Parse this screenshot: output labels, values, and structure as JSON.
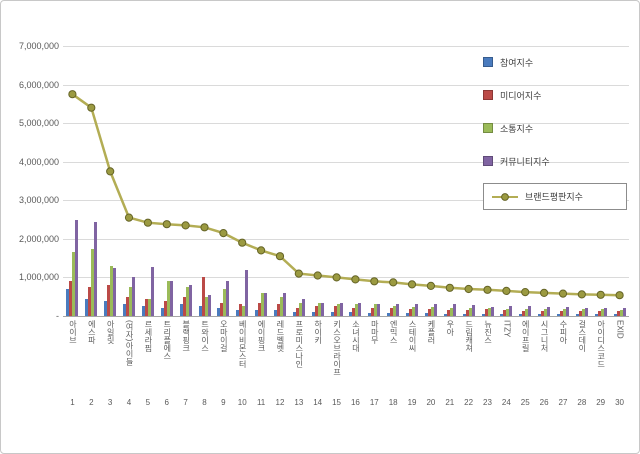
{
  "chart_data": {
    "type": "bar",
    "title": "",
    "y_axis": {
      "min": 0,
      "max": 7000000,
      "grid": true,
      "tick_labels": [
        "7,000,000",
        "6,000,000",
        "5,000,000",
        "4,000,000",
        "3,000,000",
        "2,000,000",
        "1,000,000",
        "-"
      ],
      "tick_values": [
        7000000,
        6000000,
        5000000,
        4000000,
        3000000,
        2000000,
        1000000,
        0
      ]
    },
    "categories": [
      "아이브",
      "에스파",
      "아일릿",
      "(여자)아이들",
      "르세라핌",
      "트리플에스",
      "블랙핑크",
      "트와이스",
      "오마이걸",
      "베이비몬스터",
      "에이핑크",
      "레드벨벳",
      "프로미스나인",
      "하이키",
      "키스오브라이프",
      "소녀시대",
      "마마무",
      "엔믹스",
      "스테이씨",
      "케플러",
      "우아",
      "드림캐쳐",
      "뉴진스",
      "ITZY",
      "에이프릴",
      "시그니처",
      "수피아",
      "걸스데이",
      "아이디스코드",
      "EXID"
    ],
    "ranks": [
      "1",
      "2",
      "3",
      "4",
      "5",
      "6",
      "7",
      "8",
      "9",
      "10",
      "11",
      "12",
      "13",
      "14",
      "15",
      "16",
      "17",
      "18",
      "19",
      "20",
      "21",
      "22",
      "23",
      "24",
      "25",
      "26",
      "27",
      "28",
      "29",
      "30"
    ],
    "series": [
      {
        "name": "참여지수",
        "color": "#4A7BBE",
        "values": [
          700000,
          450000,
          400000,
          300000,
          250000,
          200000,
          300000,
          250000,
          200000,
          150000,
          150000,
          150000,
          100000,
          100000,
          100000,
          100000,
          80000,
          80000,
          80000,
          70000,
          60000,
          60000,
          60000,
          60000,
          50000,
          50000,
          50000,
          50000,
          40000,
          40000
        ]
      },
      {
        "name": "미디어지수",
        "color": "#BB4A47",
        "values": [
          900000,
          750000,
          800000,
          500000,
          450000,
          380000,
          500000,
          1000000,
          350000,
          300000,
          350000,
          300000,
          200000,
          250000,
          250000,
          200000,
          220000,
          200000,
          180000,
          180000,
          150000,
          160000,
          180000,
          150000,
          140000,
          130000,
          130000,
          120000,
          120000,
          120000
        ]
      },
      {
        "name": "소통지수",
        "color": "#9BBB59",
        "values": [
          1650000,
          1750000,
          1300000,
          750000,
          450000,
          900000,
          750000,
          500000,
          700000,
          250000,
          600000,
          500000,
          350000,
          350000,
          300000,
          300000,
          300000,
          270000,
          240000,
          230000,
          210000,
          200000,
          200000,
          190000,
          180000,
          180000,
          170000,
          170000,
          170000,
          160000
        ]
      },
      {
        "name": "커뮤니티지수",
        "color": "#8064A2",
        "values": [
          2500000,
          2450000,
          1250000,
          1000000,
          1270000,
          900000,
          800000,
          550000,
          900000,
          1200000,
          600000,
          600000,
          450000,
          350000,
          350000,
          350000,
          300000,
          320000,
          320000,
          300000,
          310000,
          280000,
          240000,
          250000,
          250000,
          240000,
          230000,
          220000,
          220000,
          220000
        ]
      }
    ],
    "line_series": {
      "name": "브랜드평판지수",
      "color": "#B3AD54",
      "marker_fill": "#9B9A41",
      "marker_stroke": "#656426",
      "values": [
        5750000,
        5400000,
        3750000,
        2550000,
        2420000,
        2380000,
        2350000,
        2300000,
        2150000,
        1900000,
        1700000,
        1550000,
        1100000,
        1050000,
        1000000,
        950000,
        900000,
        870000,
        820000,
        780000,
        730000,
        700000,
        680000,
        650000,
        620000,
        600000,
        580000,
        560000,
        550000,
        540000
      ]
    },
    "legend": {
      "position": "right-top",
      "highlighted_entry": "브랜드평판지수"
    }
  }
}
